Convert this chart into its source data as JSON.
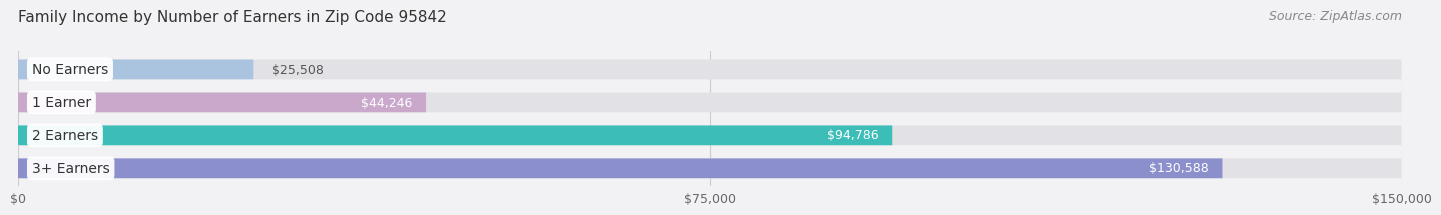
{
  "title": "Family Income by Number of Earners in Zip Code 95842",
  "source": "Source: ZipAtlas.com",
  "categories": [
    "No Earners",
    "1 Earner",
    "2 Earners",
    "3+ Earners"
  ],
  "values": [
    25508,
    44246,
    94786,
    130588
  ],
  "labels": [
    "$25,508",
    "$44,246",
    "$94,786",
    "$130,588"
  ],
  "bar_colors": [
    "#aac4e0",
    "#c9a8cc",
    "#3dbdb8",
    "#8b8fcc"
  ],
  "bar_bg_color": "#e2e2e6",
  "background_color": "#f2f2f4",
  "xlim_max": 150000,
  "xticks": [
    0,
    75000,
    150000
  ],
  "xticklabels": [
    "$0",
    "$75,000",
    "$150,000"
  ],
  "title_fontsize": 11,
  "source_fontsize": 9,
  "label_fontsize": 9,
  "category_fontsize": 10,
  "bar_height": 0.6,
  "bar_gap": 0.18
}
